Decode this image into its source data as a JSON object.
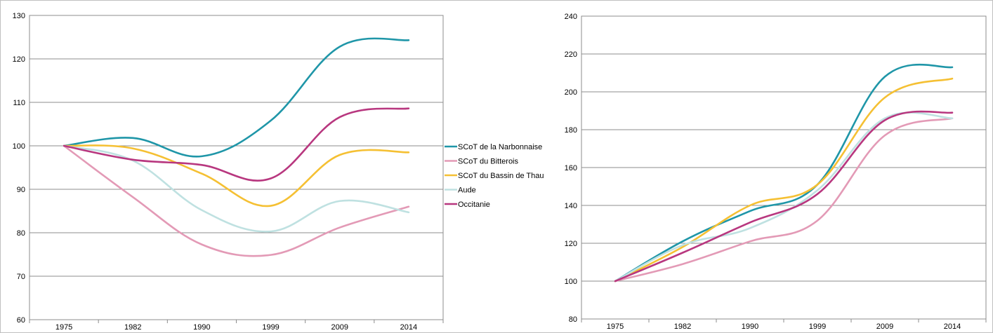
{
  "colors": {
    "narbonnaise": "#1f96a8",
    "bitterois": "#e39ab6",
    "thau": "#f5c033",
    "aude": "#bfe1e1",
    "occitanie": "#b8377f",
    "gridline": "#8c8c8c",
    "frame": "#8c8c8c"
  },
  "chart_data": [
    {
      "type": "line",
      "categories": [
        "1975",
        "1982",
        "1990",
        "1999",
        "2009",
        "2014"
      ],
      "ylim": [
        60,
        130
      ],
      "yticks": [
        60,
        70,
        80,
        90,
        100,
        110,
        120,
        130
      ],
      "grid": true,
      "legend": "right",
      "series": [
        {
          "name": "SCoT de la Narbonnaise",
          "color_key": "narbonnaise",
          "values": [
            100,
            101.8,
            97.6,
            105.8,
            122.8,
            124.3
          ]
        },
        {
          "name": "SCoT du Bitterois",
          "color_key": "bitterois",
          "values": [
            100,
            88.2,
            77.3,
            74.9,
            81.2,
            86.0
          ]
        },
        {
          "name": "SCoT du Bassin de Thau",
          "color_key": "thau",
          "values": [
            100,
            99.4,
            93.6,
            86.2,
            97.9,
            98.5
          ]
        },
        {
          "name": "Aude",
          "color_key": "aude",
          "values": [
            100,
            96.6,
            85.2,
            80.3,
            87.3,
            84.7
          ]
        },
        {
          "name": "Occitanie",
          "color_key": "occitanie",
          "values": [
            100,
            96.8,
            95.6,
            92.5,
            106.6,
            108.6
          ]
        }
      ]
    },
    {
      "type": "line",
      "categories": [
        "1975",
        "1982",
        "1990",
        "1999",
        "2009",
        "2014"
      ],
      "ylim": [
        80,
        240
      ],
      "yticks": [
        80,
        100,
        120,
        140,
        160,
        180,
        200,
        220,
        240
      ],
      "grid": true,
      "legend": "none",
      "series": [
        {
          "color_key": "narbonnaise",
          "values": [
            100,
            121,
            137,
            151,
            208,
            213
          ]
        },
        {
          "color_key": "bitterois",
          "values": [
            100,
            109,
            121,
            132,
            177,
            186
          ]
        },
        {
          "color_key": "thau",
          "values": [
            100,
            118,
            140,
            151,
            197,
            207
          ]
        },
        {
          "color_key": "aude",
          "values": [
            100,
            119,
            128,
            148,
            186,
            186
          ]
        },
        {
          "color_key": "occitanie",
          "values": [
            100,
            115,
            131,
            146,
            185,
            189
          ]
        }
      ]
    }
  ]
}
